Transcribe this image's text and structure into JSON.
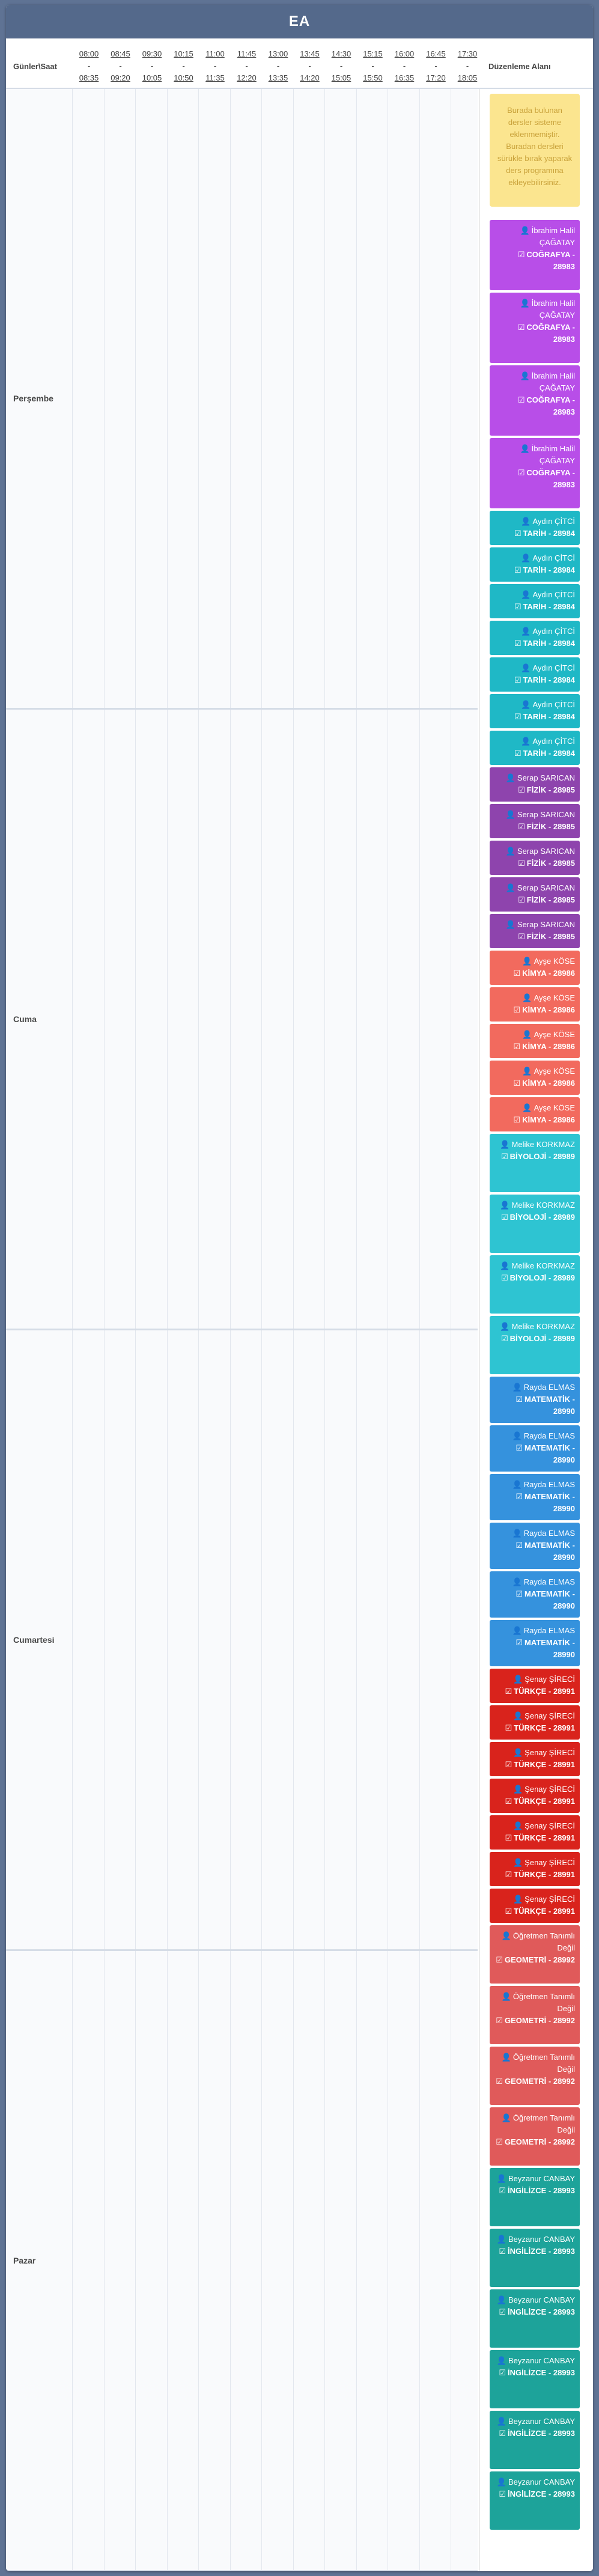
{
  "title": "EA",
  "header": {
    "days_times_label": "Günler\\Saat",
    "edit_area_label": "Düzenleme Alanı",
    "slots": [
      {
        "start": "08:00",
        "end": "08:35"
      },
      {
        "start": "08:45",
        "end": "09:20"
      },
      {
        "start": "09:30",
        "end": "10:05"
      },
      {
        "start": "10:15",
        "end": "10:50"
      },
      {
        "start": "11:00",
        "end": "11:35"
      },
      {
        "start": "11:45",
        "end": "12:20"
      },
      {
        "start": "13:00",
        "end": "13:35"
      },
      {
        "start": "13:45",
        "end": "14:20"
      },
      {
        "start": "14:30",
        "end": "15:05"
      },
      {
        "start": "15:15",
        "end": "15:50"
      },
      {
        "start": "16:00",
        "end": "16:35"
      },
      {
        "start": "16:45",
        "end": "17:20"
      },
      {
        "start": "17:30",
        "end": "18:05"
      }
    ]
  },
  "days": [
    "Perşembe",
    "Cuma",
    "Cumartesi",
    "Pazar"
  ],
  "note": "Burada bulunan dersler sisteme eklenmemiştir. Buradan dersleri sürükle bırak yaparak ders programına ekleyebilirsiniz.",
  "colors": {
    "cografya": "#b84ee8",
    "tarih": "#1fb8c6",
    "fizik": "#8e44ad",
    "kimya": "#f26a5e",
    "biyoloji": "#2ec4d2",
    "matematik": "#3592dd",
    "turkce": "#d9231c",
    "geometri": "#e05a5a",
    "ingilizce": "#1da39a"
  },
  "icons": {
    "teacher": "user-icon",
    "course": "check-square-icon"
  },
  "cards": [
    {
      "teacher": "İbrahim Halil ÇAĞATAY",
      "course": "COĞRAFYA - 28983",
      "color": "cografya",
      "lines": 5
    },
    {
      "teacher": "İbrahim Halil ÇAĞATAY",
      "course": "COĞRAFYA - 28983",
      "color": "cografya",
      "lines": 5
    },
    {
      "teacher": "İbrahim Halil ÇAĞATAY",
      "course": "COĞRAFYA - 28983",
      "color": "cografya",
      "lines": 5
    },
    {
      "teacher": "İbrahim Halil ÇAĞATAY",
      "course": "COĞRAFYA - 28983",
      "color": "cografya",
      "lines": 5
    },
    {
      "teacher": "Aydın ÇİTCİ",
      "course": "TARİH - 28984",
      "color": "tarih",
      "lines": 2
    },
    {
      "teacher": "Aydın ÇİTCİ",
      "course": "TARİH - 28984",
      "color": "tarih",
      "lines": 2
    },
    {
      "teacher": "Aydın ÇİTCİ",
      "course": "TARİH - 28984",
      "color": "tarih",
      "lines": 2
    },
    {
      "teacher": "Aydın ÇİTCİ",
      "course": "TARİH - 28984",
      "color": "tarih",
      "lines": 2
    },
    {
      "teacher": "Aydın ÇİTCİ",
      "course": "TARİH - 28984",
      "color": "tarih",
      "lines": 2
    },
    {
      "teacher": "Aydın ÇİTCİ",
      "course": "TARİH - 28984",
      "color": "tarih",
      "lines": 2
    },
    {
      "teacher": "Aydın ÇİTCİ",
      "course": "TARİH - 28984",
      "color": "tarih",
      "lines": 2
    },
    {
      "teacher": "Serap SARICAN",
      "course": "FİZİK - 28985",
      "color": "fizik",
      "lines": 2
    },
    {
      "teacher": "Serap SARICAN",
      "course": "FİZİK - 28985",
      "color": "fizik",
      "lines": 2
    },
    {
      "teacher": "Serap SARICAN",
      "course": "FİZİK - 28985",
      "color": "fizik",
      "lines": 2
    },
    {
      "teacher": "Serap SARICAN",
      "course": "FİZİK - 28985",
      "color": "fizik",
      "lines": 2
    },
    {
      "teacher": "Serap SARICAN",
      "course": "FİZİK - 28985",
      "color": "fizik",
      "lines": 2
    },
    {
      "teacher": "Ayşe KÖSE",
      "course": "KİMYA - 28986",
      "color": "kimya",
      "lines": 2
    },
    {
      "teacher": "Ayşe KÖSE",
      "course": "KİMYA - 28986",
      "color": "kimya",
      "lines": 2
    },
    {
      "teacher": "Ayşe KÖSE",
      "course": "KİMYA - 28986",
      "color": "kimya",
      "lines": 2
    },
    {
      "teacher": "Ayşe KÖSE",
      "course": "KİMYA - 28986",
      "color": "kimya",
      "lines": 2
    },
    {
      "teacher": "Ayşe KÖSE",
      "course": "KİMYA - 28986",
      "color": "kimya",
      "lines": 2
    },
    {
      "teacher": "Melike KORKMAZ",
      "course": "BİYOLOJİ - 28989",
      "color": "biyoloji",
      "lines": 4
    },
    {
      "teacher": "Melike KORKMAZ",
      "course": "BİYOLOJİ - 28989",
      "color": "biyoloji",
      "lines": 4
    },
    {
      "teacher": "Melike KORKMAZ",
      "course": "BİYOLOJİ - 28989",
      "color": "biyoloji",
      "lines": 4
    },
    {
      "teacher": "Melike KORKMAZ",
      "course": "BİYOLOJİ - 28989",
      "color": "biyoloji",
      "lines": 4
    },
    {
      "teacher": "Rayda ELMAS",
      "course": "MATEMATİK - 28990",
      "color": "matematik",
      "lines": 3
    },
    {
      "teacher": "Rayda ELMAS",
      "course": "MATEMATİK - 28990",
      "color": "matematik",
      "lines": 3
    },
    {
      "teacher": "Rayda ELMAS",
      "course": "MATEMATİK - 28990",
      "color": "matematik",
      "lines": 3
    },
    {
      "teacher": "Rayda ELMAS",
      "course": "MATEMATİK - 28990",
      "color": "matematik",
      "lines": 3
    },
    {
      "teacher": "Rayda ELMAS",
      "course": "MATEMATİK - 28990",
      "color": "matematik",
      "lines": 3
    },
    {
      "teacher": "Rayda ELMAS",
      "course": "MATEMATİK - 28990",
      "color": "matematik",
      "lines": 3
    },
    {
      "teacher": "Şenay ŞİRECİ",
      "course": "TÜRKÇE - 28991",
      "color": "turkce",
      "lines": 2
    },
    {
      "teacher": "Şenay ŞİRECİ",
      "course": "TÜRKÇE - 28991",
      "color": "turkce",
      "lines": 2
    },
    {
      "teacher": "Şenay ŞİRECİ",
      "course": "TÜRKÇE - 28991",
      "color": "turkce",
      "lines": 2
    },
    {
      "teacher": "Şenay ŞİRECİ",
      "course": "TÜRKÇE - 28991",
      "color": "turkce",
      "lines": 2
    },
    {
      "teacher": "Şenay ŞİRECİ",
      "course": "TÜRKÇE - 28991",
      "color": "turkce",
      "lines": 2
    },
    {
      "teacher": "Şenay ŞİRECİ",
      "course": "TÜRKÇE - 28991",
      "color": "turkce",
      "lines": 2
    },
    {
      "teacher": "Şenay ŞİRECİ",
      "course": "TÜRKÇE - 28991",
      "color": "turkce",
      "lines": 2
    },
    {
      "teacher": "Öğretmen Tanımlı Değil",
      "course": "GEOMETRİ - 28992",
      "color": "geometri",
      "lines": 4
    },
    {
      "teacher": "Öğretmen Tanımlı Değil",
      "course": "GEOMETRİ - 28992",
      "color": "geometri",
      "lines": 4
    },
    {
      "teacher": "Öğretmen Tanımlı Değil",
      "course": "GEOMETRİ - 28992",
      "color": "geometri",
      "lines": 4
    },
    {
      "teacher": "Öğretmen Tanımlı Değil",
      "course": "GEOMETRİ - 28992",
      "color": "geometri",
      "lines": 4
    },
    {
      "teacher": "Beyzanur CANBAY",
      "course": "İNGİLİZCE - 28993",
      "color": "ingilizce",
      "lines": 4
    },
    {
      "teacher": "Beyzanur CANBAY",
      "course": "İNGİLİZCE - 28993",
      "color": "ingilizce",
      "lines": 4
    },
    {
      "teacher": "Beyzanur CANBAY",
      "course": "İNGİLİZCE - 28993",
      "color": "ingilizce",
      "lines": 4
    },
    {
      "teacher": "Beyzanur CANBAY",
      "course": "İNGİLİZCE - 28993",
      "color": "ingilizce",
      "lines": 4
    },
    {
      "teacher": "Beyzanur CANBAY",
      "course": "İNGİLİZCE - 28993",
      "color": "ingilizce",
      "lines": 4
    },
    {
      "teacher": "Beyzanur CANBAY",
      "course": "İNGİLİZCE - 28993",
      "color": "ingilizce",
      "lines": 4
    }
  ]
}
